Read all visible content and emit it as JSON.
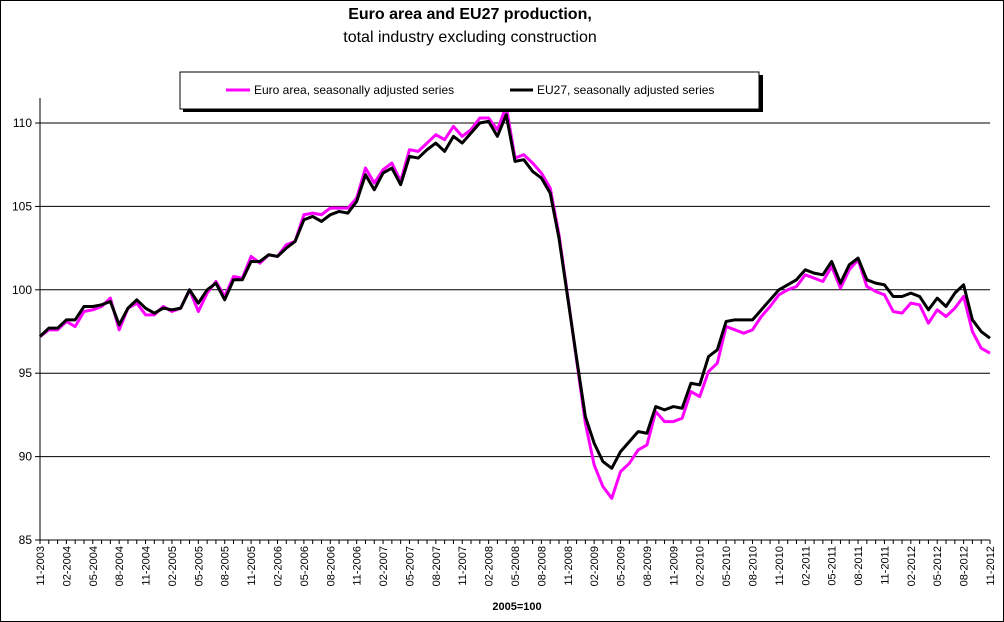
{
  "chart_data": {
    "type": "line",
    "title": "Euro area and EU27 production,",
    "subtitle": "total industry excluding construction",
    "xlabel": "2005=100",
    "ylabel": "",
    "ylim": [
      85,
      111.5
    ],
    "yticks": [
      85,
      90,
      95,
      100,
      105,
      110
    ],
    "grid": true,
    "legend_position": "top",
    "x_tick_labels": [
      "11-2003",
      "02-2004",
      "05-2004",
      "08-2004",
      "11-2004",
      "02-2005",
      "05-2005",
      "08-2005",
      "11-2005",
      "02-2006",
      "05-2006",
      "08-2006",
      "11-2006",
      "02-2007",
      "05-2007",
      "08-2007",
      "11-2007",
      "02-2008",
      "05-2008",
      "08-2008",
      "11-2008",
      "02-2009",
      "05-2009",
      "08-2009",
      "11-2009",
      "02-2010",
      "05-2010",
      "08-2010",
      "11-2010",
      "02-2011",
      "05-2011",
      "08-2011",
      "11-2011",
      "02-2012",
      "05-2012",
      "08-2012",
      "11-2012"
    ],
    "series": [
      {
        "name": "Euro area, seasonally adjusted series",
        "color": "#ff00ff",
        "values": [
          97.2,
          97.6,
          97.6,
          98.1,
          97.8,
          98.7,
          98.8,
          99.0,
          99.5,
          97.6,
          98.9,
          99.2,
          98.5,
          98.5,
          99.0,
          98.7,
          98.9,
          100.0,
          98.7,
          99.8,
          100.5,
          99.6,
          100.8,
          100.7,
          102.0,
          101.6,
          102.1,
          102.0,
          102.7,
          102.9,
          104.5,
          104.6,
          104.5,
          104.9,
          104.9,
          104.9,
          105.5,
          107.3,
          106.4,
          107.2,
          107.6,
          106.5,
          108.4,
          108.3,
          108.8,
          109.3,
          109.0,
          109.8,
          109.2,
          109.6,
          110.3,
          110.3,
          109.6,
          111.0,
          107.9,
          108.1,
          107.6,
          107.0,
          106.1,
          103.3,
          99.6,
          95.8,
          92.0,
          89.5,
          88.2,
          87.5,
          89.1,
          89.6,
          90.4,
          90.7,
          92.7,
          92.1,
          92.1,
          92.3,
          93.9,
          93.6,
          95.1,
          95.6,
          97.8,
          97.6,
          97.4,
          97.6,
          98.4,
          99.0,
          99.7,
          100.0,
          100.2,
          100.9,
          100.7,
          100.5,
          101.4,
          100.1,
          101.2,
          101.8,
          100.2,
          99.9,
          99.7,
          98.7,
          98.6,
          99.2,
          99.1,
          98.0,
          98.8,
          98.4,
          98.9,
          99.6,
          97.5,
          96.5,
          96.2
        ]
      },
      {
        "name": "EU27, seasonally adjusted series",
        "color": "#000000",
        "values": [
          97.2,
          97.7,
          97.7,
          98.2,
          98.2,
          99.0,
          99.0,
          99.1,
          99.3,
          97.9,
          98.9,
          99.4,
          98.9,
          98.6,
          98.9,
          98.8,
          98.9,
          100.0,
          99.2,
          100.0,
          100.4,
          99.4,
          100.6,
          100.6,
          101.7,
          101.7,
          102.1,
          102.0,
          102.5,
          102.9,
          104.2,
          104.4,
          104.1,
          104.5,
          104.7,
          104.6,
          105.3,
          106.9,
          106.0,
          107.0,
          107.3,
          106.3,
          108.0,
          107.9,
          108.4,
          108.8,
          108.3,
          109.2,
          108.8,
          109.4,
          110.0,
          110.1,
          109.2,
          110.5,
          107.7,
          107.8,
          107.1,
          106.7,
          105.8,
          103.1,
          99.5,
          95.9,
          92.4,
          90.8,
          89.7,
          89.3,
          90.3,
          90.9,
          91.5,
          91.4,
          93.0,
          92.8,
          93.0,
          92.9,
          94.4,
          94.3,
          96.0,
          96.4,
          98.1,
          98.2,
          98.2,
          98.2,
          98.8,
          99.4,
          100.0,
          100.3,
          100.6,
          101.2,
          101.0,
          100.9,
          101.7,
          100.4,
          101.5,
          101.9,
          100.6,
          100.4,
          100.3,
          99.6,
          99.6,
          99.8,
          99.6,
          98.8,
          99.5,
          99.0,
          99.8,
          100.3,
          98.2,
          97.5,
          97.1
        ]
      }
    ]
  }
}
